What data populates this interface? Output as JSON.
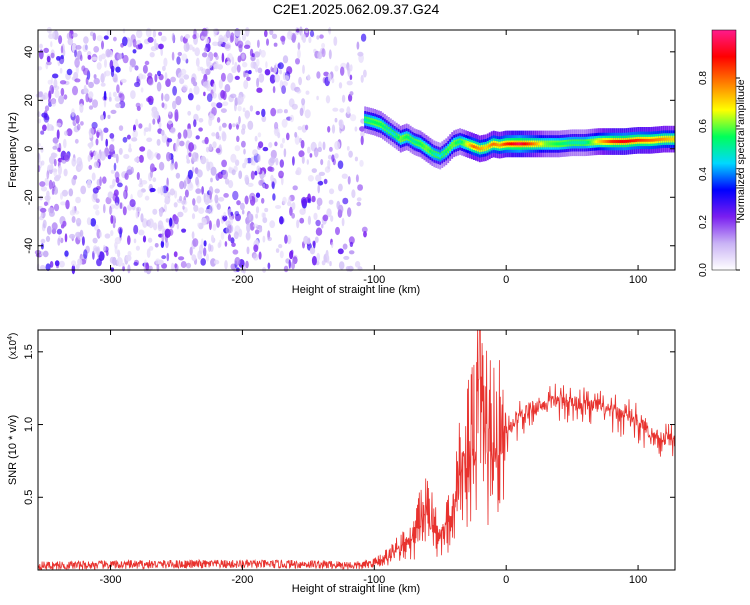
{
  "title": "C2E1.2025.062.09.37.G24",
  "colors": {
    "specgram_low": "#c9b3f5",
    "specgram_high": "#5a12e6",
    "snr_line": "#e8322e"
  },
  "chart_data": [
    {
      "type": "heatmap",
      "title": "C2E1.2025.062.09.37.G24",
      "xlabel": "Height of straight line (km)",
      "ylabel": "Frequency (Hz)",
      "xlim": [
        -355,
        128
      ],
      "ylim": [
        -50,
        49
      ],
      "xticks": [
        -300,
        -200,
        -100,
        0,
        100
      ],
      "yticks": [
        -40,
        -20,
        0,
        20,
        40
      ],
      "xtick_labels": [
        "-300",
        "-200",
        "-100",
        "0",
        "100"
      ],
      "ytick_labels": [
        "-40",
        "-20",
        "0",
        "20",
        "40"
      ],
      "colorbar": {
        "label": "Normalized spectral amplitude",
        "range": [
          0,
          1
        ],
        "ticks": [
          0.0,
          0.2,
          0.4,
          0.6,
          0.8
        ],
        "tick_labels": [
          "0.0",
          "0.2",
          "0.4",
          "0.6",
          "0.8"
        ],
        "colormap": [
          "#ffffff",
          "#c9b3f5",
          "#7a1ef0",
          "#0000ff",
          "#00d8ff",
          "#00ff5a",
          "#ffff00",
          "#ff7f00",
          "#ff0000",
          "#ff1a8c"
        ]
      },
      "noise_region": {
        "x": [
          -355,
          -107
        ],
        "y": [
          -50,
          49
        ],
        "amplitude": [
          0.05,
          0.3
        ]
      },
      "ridge": {
        "x": [
          -107,
          -100,
          -95,
          -90,
          -85,
          -80,
          -75,
          -70,
          -65,
          -60,
          -55,
          -50,
          -45,
          -40,
          -35,
          -30,
          -25,
          -20,
          -15,
          -10,
          -5,
          0,
          10,
          20,
          30,
          40,
          50,
          60,
          70,
          80,
          90,
          100,
          110,
          120,
          128
        ],
        "y": [
          12,
          11,
          10,
          8,
          6,
          4,
          5,
          3,
          2,
          0,
          -2,
          -3,
          -1,
          2,
          3,
          2,
          1,
          0,
          0.5,
          2,
          1.5,
          2,
          2,
          2,
          2,
          2,
          2.5,
          2.5,
          3,
          3,
          3,
          3.5,
          3.5,
          4,
          4
        ],
        "amplitude": [
          0.5,
          0.55,
          0.55,
          0.5,
          0.45,
          0.6,
          0.55,
          0.5,
          0.55,
          0.6,
          0.5,
          0.45,
          0.55,
          0.6,
          0.5,
          0.65,
          0.8,
          0.75,
          0.7,
          0.8,
          0.75,
          0.85,
          0.95,
          0.8,
          0.6,
          0.55,
          0.5,
          0.5,
          0.7,
          0.85,
          0.9,
          0.85,
          0.8,
          0.75,
          0.7
        ]
      }
    },
    {
      "type": "line",
      "xlabel": "Height of straight line (km)",
      "ylabel": "SNR (10 * v/v)",
      "yscale_label": "(x10",
      "yscale_exp": "4",
      "yscale_close": ")",
      "xlim": [
        -355,
        128
      ],
      "ylim": [
        0,
        16500
      ],
      "xticks": [
        -300,
        -200,
        -100,
        0,
        100
      ],
      "yticks": [
        5000,
        10000,
        15000
      ],
      "xtick_labels": [
        "-300",
        "-200",
        "-100",
        "0",
        "100"
      ],
      "ytick_labels": [
        "0.5",
        "1.0",
        "1.5"
      ],
      "series": [
        {
          "color": "#e8322e",
          "x": [
            -355,
            -300,
            -250,
            -200,
            -150,
            -110,
            -100,
            -90,
            -80,
            -70,
            -65,
            -60,
            -55,
            -50,
            -45,
            -40,
            -35,
            -30,
            -25,
            -20,
            -15,
            -10,
            -5,
            0,
            5,
            10,
            20,
            30,
            40,
            50,
            60,
            70,
            80,
            90,
            100,
            110,
            120,
            128
          ],
          "y": [
            300,
            350,
            400,
            400,
            400,
            300,
            500,
            900,
            1500,
            2200,
            3500,
            4000,
            3000,
            2500,
            3000,
            4500,
            6500,
            8000,
            8500,
            12000,
            9500,
            8500,
            8500,
            9500,
            10000,
            10800,
            11300,
            11500,
            11800,
            11700,
            11500,
            11300,
            11000,
            10800,
            10300,
            9500,
            9200,
            9000
          ]
        }
      ]
    }
  ]
}
